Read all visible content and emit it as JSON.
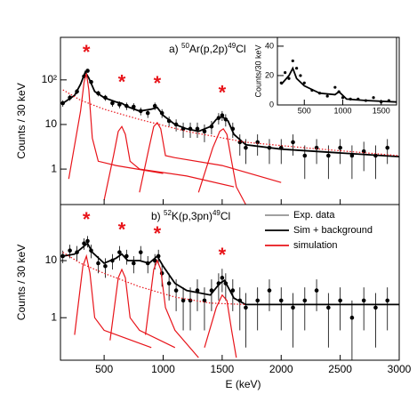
{
  "chart_data": [
    {
      "type": "scatter",
      "title_parts": [
        "a) ",
        "50",
        "Ar(p,2p)",
        "49",
        "Cl"
      ],
      "y_label": "Counts / 30 keV",
      "xlim": [
        130,
        3000
      ],
      "xticks": [
        500,
        1000,
        1500,
        2000,
        2500,
        3000
      ],
      "log_y": true,
      "ylim": [
        0.16,
        900
      ],
      "yticks": [
        1,
        10,
        {
          "value": 100,
          "label": "10²"
        }
      ],
      "peak_markers": {
        "label": "*",
        "color": "#e8141a",
        "x": [
          350,
          650,
          950,
          1500
        ]
      },
      "series": [
        {
          "style": "points",
          "color": "#000000",
          "x": [
            150,
            210,
            270,
            330,
            360,
            390,
            450,
            510,
            570,
            630,
            690,
            750,
            810,
            870,
            930,
            990,
            1050,
            1110,
            1170,
            1230,
            1290,
            1350,
            1410,
            1470,
            1500,
            1530,
            1590,
            1650,
            1700,
            1800,
            1900,
            2000,
            2100,
            2200,
            2300,
            2400,
            2500,
            2600,
            2700,
            2800,
            2900
          ],
          "values": [
            30,
            40,
            55,
            120,
            160,
            90,
            50,
            40,
            30,
            28,
            26,
            25,
            20,
            18,
            26,
            18,
            12,
            10,
            8,
            8,
            8,
            7,
            9,
            14,
            16,
            13,
            8,
            4,
            3,
            4,
            3,
            3,
            4,
            2,
            3,
            2,
            3,
            2,
            2.5,
            2,
            3
          ],
          "errors": [
            5,
            6,
            7,
            11,
            13,
            9,
            7,
            6,
            5,
            5,
            5,
            5,
            4,
            4,
            5,
            4,
            3,
            3,
            3,
            3,
            3,
            3,
            3,
            4,
            4,
            4,
            3,
            2,
            1.7,
            2,
            1.7,
            1.7,
            2,
            1.4,
            1.7,
            1.4,
            1.7,
            1.4,
            1.6,
            1.4,
            1.7
          ]
        },
        {
          "style": "line",
          "color": "#000000",
          "x": [
            150,
            250,
            300,
            340,
            370,
            420,
            500,
            600,
            650,
            700,
            800,
            900,
            950,
            1000,
            1100,
            1200,
            1300,
            1400,
            1450,
            1500,
            1550,
            1600,
            1700,
            2000,
            2500,
            3000
          ],
          "values": [
            30,
            45,
            80,
            150,
            110,
            55,
            40,
            32,
            30,
            25,
            20,
            22,
            24,
            16,
            10,
            8,
            7,
            9,
            13,
            15,
            12,
            6,
            3.5,
            2.8,
            2.3,
            1.9
          ]
        },
        {
          "style": "dotted",
          "color": "#e8141a",
          "x": [
            150,
            300,
            500,
            800,
            1200,
            1700,
            2200,
            3000
          ],
          "values": [
            60,
            35,
            22,
            13,
            7,
            4,
            3,
            2
          ]
        },
        {
          "style": "line",
          "color": "#e8141a",
          "x": [
            200,
            300,
            330,
            350,
            370,
            400,
            450,
            600,
            1000
          ],
          "values": [
            0.6,
            20,
            90,
            140,
            60,
            5,
            1.5,
            1.2,
            0.8
          ]
        },
        {
          "style": "line",
          "color": "#e8141a",
          "x": [
            500,
            580,
            620,
            650,
            680,
            720,
            800,
            1200,
            1600
          ],
          "values": [
            0.2,
            2,
            7,
            9,
            6,
            1.5,
            1,
            0.7,
            0.4
          ]
        },
        {
          "style": "line",
          "color": "#e8141a",
          "x": [
            800,
            880,
            920,
            950,
            980,
            1020,
            1100,
            1500,
            2000
          ],
          "values": [
            0.3,
            3,
            9,
            11,
            8,
            2,
            1.8,
            1.2,
            0.5
          ]
        },
        {
          "style": "line",
          "color": "#e8141a",
          "x": [
            1300,
            1420,
            1480,
            1510,
            1540,
            1580,
            1620,
            1700
          ],
          "values": [
            0.3,
            3,
            7,
            8,
            6,
            1.5,
            0.4,
            0.16
          ]
        }
      ]
    },
    {
      "type": "scatter",
      "y_label": "Counts/30 keV",
      "xlim": [
        150,
        1700
      ],
      "xticks": [
        500,
        1000,
        1500
      ],
      "ylim": [
        0,
        46
      ],
      "yticks": [
        0,
        20,
        40
      ],
      "series": [
        {
          "style": "points",
          "color": "#000000",
          "x": [
            200,
            250,
            300,
            350,
            400,
            450,
            500,
            600,
            700,
            800,
            900,
            950,
            1000,
            1100,
            1200,
            1300,
            1400,
            1500,
            1600
          ],
          "values": [
            15,
            22,
            18,
            30,
            25,
            20,
            15,
            10,
            8,
            6,
            12,
            9,
            5,
            4,
            4,
            3,
            5,
            2,
            3
          ]
        },
        {
          "style": "line",
          "color": "#000000",
          "x": [
            200,
            300,
            350,
            400,
            500,
            700,
            900,
            950,
            1050,
            1300,
            1700
          ],
          "values": [
            14,
            20,
            25,
            18,
            13,
            8,
            7,
            9,
            4,
            3,
            2
          ]
        }
      ]
    },
    {
      "type": "scatter",
      "title_parts": [
        "b) ",
        "52",
        "K(p,3pn)",
        "49",
        "Cl"
      ],
      "y_label": "Counts / 30 keV",
      "x_label": "E (keV)",
      "xlim": [
        130,
        3000
      ],
      "xticks": [
        500,
        1000,
        1500,
        2000,
        2500,
        3000
      ],
      "log_y": true,
      "ylim": [
        0.18,
        96
      ],
      "yticks": [
        1,
        10
      ],
      "peak_markers": {
        "label": "*",
        "color": "#e8141a",
        "x": [
          350,
          650,
          950,
          1500
        ]
      },
      "series": [
        {
          "name": "Exp. data",
          "style": "points",
          "color": "#000000",
          "x": [
            150,
            210,
            270,
            330,
            360,
            390,
            450,
            510,
            570,
            630,
            690,
            750,
            810,
            870,
            930,
            960,
            990,
            1050,
            1110,
            1170,
            1230,
            1290,
            1350,
            1410,
            1470,
            1500,
            1530,
            1590,
            1650,
            1700,
            1800,
            1900,
            2000,
            2100,
            2200,
            2300,
            2400,
            2500,
            2600,
            2700,
            2800,
            2900
          ],
          "values": [
            12,
            15,
            14,
            20,
            22,
            15,
            9,
            8,
            10,
            14,
            12,
            9,
            14,
            9,
            10,
            12,
            6,
            4,
            3,
            2,
            2,
            3,
            2,
            3,
            4,
            5,
            4,
            3,
            2,
            1.5,
            2,
            3,
            2,
            1.5,
            2,
            3,
            1.5,
            2,
            1,
            2,
            1.5,
            2
          ],
          "errors": [
            3,
            4,
            4,
            4.5,
            5,
            4,
            3,
            3,
            3,
            4,
            3.5,
            3,
            4,
            3,
            3,
            3.5,
            2.5,
            2,
            1.7,
            1.4,
            1.4,
            1.7,
            1.4,
            1.7,
            2,
            2.2,
            2,
            1.7,
            1.4,
            1.2,
            1.4,
            1.7,
            1.4,
            1.2,
            1.4,
            1.7,
            1.2,
            1.4,
            1,
            1.4,
            1.2,
            1.4
          ]
        },
        {
          "name": "Sim + background",
          "style": "line",
          "color": "#000000",
          "x": [
            150,
            250,
            330,
            360,
            400,
            500,
            600,
            650,
            700,
            800,
            880,
            950,
            1000,
            1100,
            1200,
            1400,
            1480,
            1520,
            1600,
            1700,
            2000,
            3000
          ],
          "values": [
            12,
            13,
            18,
            20,
            14,
            9,
            11,
            13,
            10,
            10,
            9,
            12,
            8,
            4,
            3,
            2.5,
            4,
            4.5,
            2.2,
            1.7,
            1.7,
            1.7
          ]
        },
        {
          "name": "simulation",
          "style": "line",
          "color": "#e8141a",
          "x": [
            250,
            320,
            350,
            380,
            420,
            500,
            900
          ],
          "values": [
            0.5,
            8,
            12,
            6,
            1,
            0.6,
            0.3
          ]
        },
        {
          "style": "dotted",
          "color": "#e8141a",
          "x": [
            150,
            300,
            500,
            800,
            1100,
            1400,
            1700
          ],
          "values": [
            14,
            9,
            6,
            3.5,
            2.3,
            1.8,
            1.7
          ]
        },
        {
          "style": "line",
          "color": "#e8141a",
          "x": [
            550,
            620,
            650,
            680,
            720,
            800,
            1100
          ],
          "values": [
            0.4,
            5,
            7,
            5,
            1,
            0.6,
            0.3
          ]
        },
        {
          "style": "line",
          "color": "#e8141a",
          "x": [
            850,
            920,
            950,
            980,
            1020,
            1100,
            1300
          ],
          "values": [
            0.5,
            7,
            10,
            7,
            1.5,
            0.6,
            0.2
          ]
        },
        {
          "style": "line",
          "color": "#e8141a",
          "x": [
            1350,
            1450,
            1500,
            1540,
            1580,
            1620
          ],
          "values": [
            0.3,
            1.5,
            2.5,
            2,
            0.6,
            0.2
          ]
        }
      ]
    }
  ]
}
